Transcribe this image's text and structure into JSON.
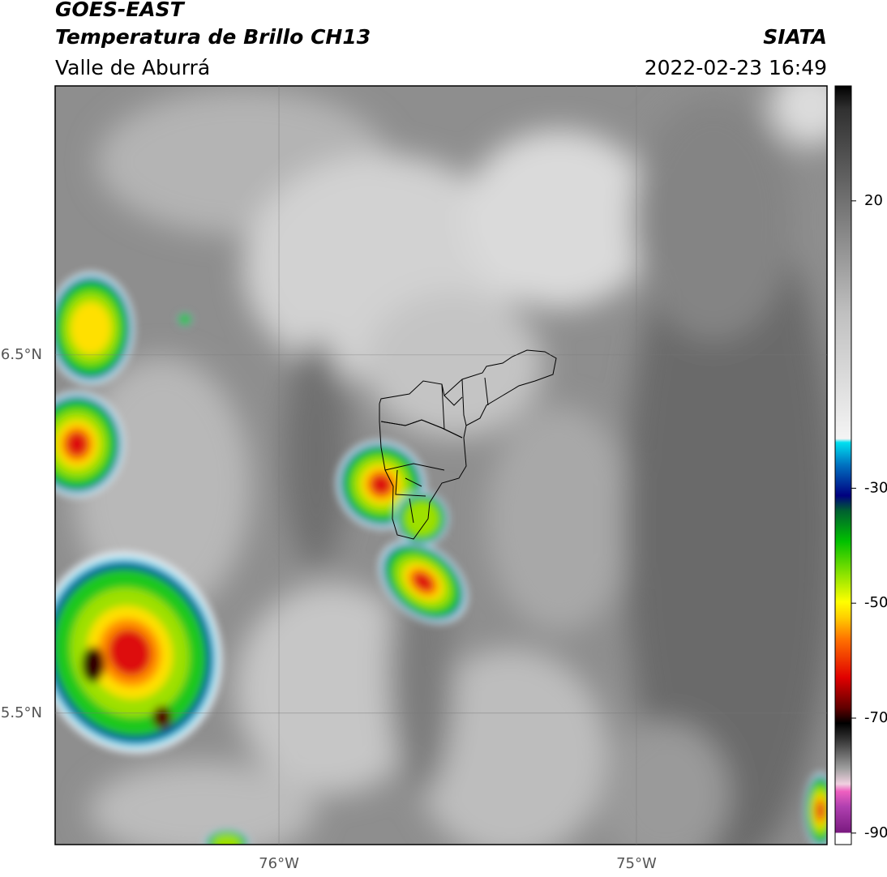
{
  "header": {
    "title": "GOES-EAST",
    "subtitle": "Temperatura de Brillo CH13",
    "region": "Valle de Aburrá",
    "source": "SIATA",
    "datetime": "2022-02-23 16:49"
  },
  "map": {
    "xlim": [
      -76.626,
      -74.467
    ],
    "ylim": [
      5.133,
      7.251
    ],
    "xticks": [
      {
        "value": -76,
        "label": "76°W"
      },
      {
        "value": -75,
        "label": "75°W"
      }
    ],
    "yticks": [
      {
        "value": 6.5,
        "label": "6.5°N"
      },
      {
        "value": 5.5,
        "label": "5.5°N"
      }
    ],
    "grid": true
  },
  "colorbar": {
    "lim": [
      -92,
      40
    ],
    "ticks": [
      20,
      -30,
      -50,
      -70,
      -90
    ]
  }
}
